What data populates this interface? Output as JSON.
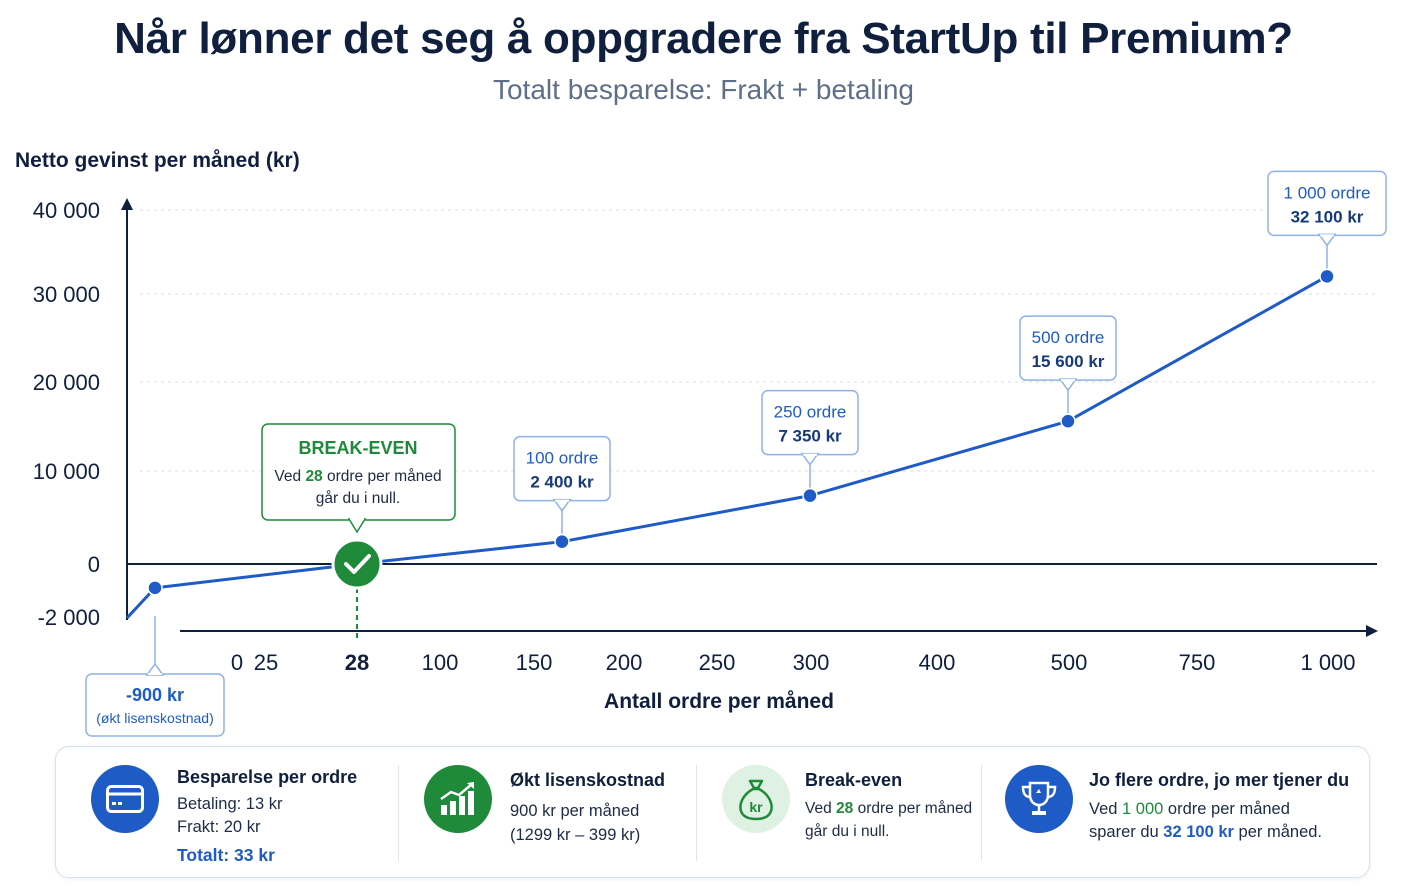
{
  "title": "Når lønner det seg å oppgradere fra StartUp til Premium?",
  "subtitle": "Totalt besparelse: Frakt + betaling",
  "chart_data": {
    "type": "line",
    "ylabel": "Netto gevinst per måned (kr)",
    "xlabel": "Antall ordre per måned",
    "x_ticks": [
      "0",
      "25",
      "28",
      "100",
      "150",
      "200",
      "250",
      "300",
      "400",
      "500",
      "750",
      "1 000"
    ],
    "y_ticks": [
      "40 000",
      "30 000",
      "20 000",
      "10 000",
      "0",
      "-2 000"
    ],
    "y_tick_values": [
      40000,
      30000,
      20000,
      10000,
      0,
      -2000
    ],
    "series": [
      {
        "points": [
          {
            "x": 0,
            "y": -900
          },
          {
            "x": 28,
            "y": 0
          },
          {
            "x": 100,
            "y": 2400
          },
          {
            "x": 250,
            "y": 7350
          },
          {
            "x": 500,
            "y": 15600
          },
          {
            "x": 1000,
            "y": 32100
          }
        ]
      }
    ],
    "callouts": [
      {
        "line1": "100 ordre",
        "line2": "2 400 kr",
        "x": 100
      },
      {
        "line1": "250 ordre",
        "line2": "7 350 kr",
        "x": 250
      },
      {
        "line1": "500 ordre",
        "line2": "15 600 kr",
        "x": 500
      },
      {
        "line1": "1 000 ordre",
        "line2": "32 100 kr",
        "x": 1000
      }
    ],
    "negative_callout": {
      "value": "-900 kr",
      "note": "(økt lisenskostnad)"
    },
    "break_even": {
      "title": "BREAK-EVEN",
      "text_pre": "Ved ",
      "orders": "28",
      "text_post": " ordre per måned",
      "line2": "går du i null."
    },
    "grid": "horizontal-dotted",
    "colors": {
      "line": "#1e5bc6",
      "break_even": "#1f8a3a",
      "axis": "#0f1f3d"
    }
  },
  "info_cards": [
    {
      "heading": "Besparelse per ordre",
      "icon": "credit-card-icon",
      "lines": [
        "Betaling: 13 kr",
        "Frakt: 20 kr"
      ],
      "total": "Totalt: 33 kr",
      "icon_color": "#1e5bc6"
    },
    {
      "heading": "Økt lisenskostnad",
      "icon": "growth-chart-icon",
      "lines": [
        "900 kr per måned",
        "(1299 kr – 399 kr)"
      ],
      "icon_color": "#1f8a3a"
    },
    {
      "heading": "Break-even",
      "icon": "money-bag-icon",
      "pre": "Ved ",
      "hl": "28",
      "post": " ordre per måned",
      "line2": "går du i null.",
      "icon_color": "#dff1e2"
    },
    {
      "heading": "Jo flere ordre, jo mer tjener du",
      "icon": "trophy-icon",
      "pre": "Ved ",
      "hl": "1 000",
      "post": " ordre per måned",
      "pre2": "sparer du ",
      "hl2": "32 100 kr",
      "post2": " per måned.",
      "icon_color": "#1e5bc6"
    }
  ]
}
